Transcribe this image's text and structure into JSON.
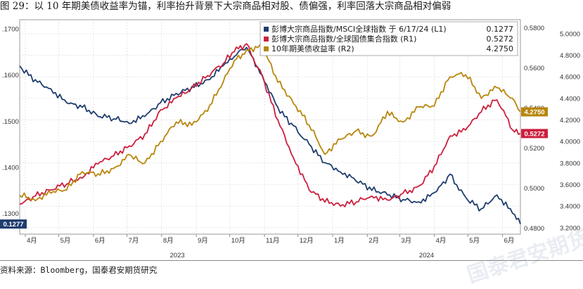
{
  "figure_title": "图 29：以 10 年期美债收益率为锚，利率抬升背景下大宗商品相对股、债偏强，利率回落大宗商品相对偏弱",
  "source_note": "资料来源：Bloomberg，国泰君安期货研究",
  "watermark_text": "国泰君安期货",
  "chart_data": {
    "type": "line",
    "x_start": "2023-03-27",
    "x_end": "2024-06-17",
    "month_ticks": [
      {
        "date": "2023-04-01",
        "label": "4月"
      },
      {
        "date": "2023-05-01",
        "label": "5月"
      },
      {
        "date": "2023-06-01",
        "label": "6月"
      },
      {
        "date": "2023-07-01",
        "label": "7月"
      },
      {
        "date": "2023-08-01",
        "label": "8月"
      },
      {
        "date": "2023-09-01",
        "label": "9月"
      },
      {
        "date": "2023-10-01",
        "label": "10月"
      },
      {
        "date": "2023-11-01",
        "label": "11月"
      },
      {
        "date": "2023-12-01",
        "label": "12月"
      },
      {
        "date": "2024-01-01",
        "label": "1月"
      },
      {
        "date": "2024-02-01",
        "label": "2月"
      },
      {
        "date": "2024-03-01",
        "label": "3月"
      },
      {
        "date": "2024-04-01",
        "label": "4月"
      },
      {
        "date": "2024-05-01",
        "label": "5月"
      },
      {
        "date": "2024-06-01",
        "label": "6月"
      }
    ],
    "year_labels": [
      {
        "date": "2023-08-15",
        "label": "2023"
      },
      {
        "date": "2024-03-25",
        "label": "2024"
      }
    ],
    "axes": {
      "l1": {
        "min": 0.1255,
        "max": 0.172,
        "ticks": [
          0.13,
          0.14,
          0.15,
          0.16,
          0.17
        ],
        "tick_labels": [
          ".1300",
          ".1400",
          ".1500",
          ".1600",
          ".1700"
        ]
      },
      "r1": {
        "min": 0.477,
        "max": 0.584,
        "ticks": [
          0.48,
          0.5,
          0.52,
          0.54,
          0.56,
          0.58
        ],
        "tick_labels": [
          "0.4800",
          "0.5000",
          "0.5200",
          "0.5400",
          "0.5600",
          "0.5800"
        ]
      },
      "r2": {
        "min": 3.14,
        "max": 5.13,
        "ticks": [
          3.2,
          3.4,
          3.6,
          3.8,
          4.0,
          4.2,
          4.4,
          4.6,
          4.8,
          5.0
        ],
        "tick_labels": [
          "3.2000",
          "3.4000",
          "3.6000",
          "3.8000",
          "4.0000",
          "4.2000",
          "4.4000",
          "4.6000",
          "4.8000",
          "5.0000"
        ]
      }
    },
    "grid": true,
    "legend_position": "top-right",
    "series": [
      {
        "name": "彭博大宗商品指数/MSCI全球指数 于 6/17/24 (L1)",
        "last_value_label": "0.1277",
        "axis": "l1",
        "color": "#1f3d6e",
        "end_tag": "0.1277",
        "points": [
          [
            "2023-03-27",
            0.162
          ],
          [
            "2023-04-10",
            0.159
          ],
          [
            "2023-04-24",
            0.157
          ],
          [
            "2023-05-08",
            0.154
          ],
          [
            "2023-05-22",
            0.153
          ],
          [
            "2023-06-05",
            0.151
          ],
          [
            "2023-06-19",
            0.1505
          ],
          [
            "2023-07-03",
            0.1495
          ],
          [
            "2023-07-17",
            0.151
          ],
          [
            "2023-07-31",
            0.154
          ],
          [
            "2023-08-14",
            0.156
          ],
          [
            "2023-08-28",
            0.1575
          ],
          [
            "2023-09-11",
            0.159
          ],
          [
            "2023-09-25",
            0.162
          ],
          [
            "2023-10-05",
            0.164
          ],
          [
            "2023-10-16",
            0.166
          ],
          [
            "2023-10-30",
            0.16
          ],
          [
            "2023-11-13",
            0.153
          ],
          [
            "2023-11-27",
            0.149
          ],
          [
            "2023-12-11",
            0.145
          ],
          [
            "2023-12-25",
            0.141
          ],
          [
            "2024-01-08",
            0.139
          ],
          [
            "2024-01-22",
            0.137
          ],
          [
            "2024-02-05",
            0.135
          ],
          [
            "2024-02-19",
            0.134
          ],
          [
            "2024-03-04",
            0.133
          ],
          [
            "2024-03-18",
            0.1325
          ],
          [
            "2024-04-01",
            0.1345
          ],
          [
            "2024-04-15",
            0.1385
          ],
          [
            "2024-04-29",
            0.1335
          ],
          [
            "2024-05-13",
            0.131
          ],
          [
            "2024-05-27",
            0.134
          ],
          [
            "2024-06-10",
            0.13
          ],
          [
            "2024-06-17",
            0.1277
          ]
        ]
      },
      {
        "name": "彭博大宗商品指数/全球国债集合指数 (R1)",
        "last_value_label": "0.5272",
        "axis": "r1",
        "color": "#cc1f3d",
        "end_tag": "0.5272",
        "points": [
          [
            "2023-03-27",
            0.492
          ],
          [
            "2023-04-10",
            0.496
          ],
          [
            "2023-04-24",
            0.499
          ],
          [
            "2023-05-08",
            0.502
          ],
          [
            "2023-05-22",
            0.505
          ],
          [
            "2023-06-05",
            0.512
          ],
          [
            "2023-06-19",
            0.516
          ],
          [
            "2023-07-03",
            0.521
          ],
          [
            "2023-07-17",
            0.527
          ],
          [
            "2023-07-31",
            0.539
          ],
          [
            "2023-08-14",
            0.545
          ],
          [
            "2023-08-28",
            0.55
          ],
          [
            "2023-09-11",
            0.556
          ],
          [
            "2023-09-25",
            0.562
          ],
          [
            "2023-10-05",
            0.568
          ],
          [
            "2023-10-16",
            0.572
          ],
          [
            "2023-10-30",
            0.556
          ],
          [
            "2023-11-13",
            0.534
          ],
          [
            "2023-11-27",
            0.515
          ],
          [
            "2023-12-11",
            0.499
          ],
          [
            "2023-12-25",
            0.493
          ],
          [
            "2024-01-08",
            0.491
          ],
          [
            "2024-01-22",
            0.493
          ],
          [
            "2024-02-05",
            0.496
          ],
          [
            "2024-02-19",
            0.494
          ],
          [
            "2024-03-04",
            0.4975
          ],
          [
            "2024-03-18",
            0.501
          ],
          [
            "2024-04-01",
            0.511
          ],
          [
            "2024-04-15",
            0.526
          ],
          [
            "2024-04-29",
            0.529
          ],
          [
            "2024-05-13",
            0.538
          ],
          [
            "2024-05-27",
            0.544
          ],
          [
            "2024-06-10",
            0.529
          ],
          [
            "2024-06-17",
            0.5272
          ]
        ]
      },
      {
        "name": "10年期美债收益率 (R2)",
        "last_value_label": "4.2750",
        "axis": "r2",
        "color": "#b8860b",
        "end_tag": "4.2750",
        "points": [
          [
            "2023-03-27",
            3.5
          ],
          [
            "2023-04-10",
            3.45
          ],
          [
            "2023-04-24",
            3.52
          ],
          [
            "2023-05-08",
            3.55
          ],
          [
            "2023-05-22",
            3.72
          ],
          [
            "2023-06-05",
            3.7
          ],
          [
            "2023-06-19",
            3.75
          ],
          [
            "2023-07-03",
            3.88
          ],
          [
            "2023-07-17",
            3.8
          ],
          [
            "2023-07-31",
            4.0
          ],
          [
            "2023-08-14",
            4.18
          ],
          [
            "2023-08-28",
            4.15
          ],
          [
            "2023-09-11",
            4.28
          ],
          [
            "2023-09-25",
            4.55
          ],
          [
            "2023-10-05",
            4.75
          ],
          [
            "2023-10-16",
            4.85
          ],
          [
            "2023-10-30",
            4.88
          ],
          [
            "2023-11-13",
            4.55
          ],
          [
            "2023-11-27",
            4.35
          ],
          [
            "2023-12-11",
            4.15
          ],
          [
            "2023-12-25",
            3.88
          ],
          [
            "2024-01-08",
            4.02
          ],
          [
            "2024-01-22",
            4.1
          ],
          [
            "2024-02-05",
            4.05
          ],
          [
            "2024-02-19",
            4.28
          ],
          [
            "2024-03-04",
            4.18
          ],
          [
            "2024-03-18",
            4.32
          ],
          [
            "2024-04-01",
            4.33
          ],
          [
            "2024-04-15",
            4.6
          ],
          [
            "2024-04-29",
            4.62
          ],
          [
            "2024-05-13",
            4.4
          ],
          [
            "2024-05-27",
            4.5
          ],
          [
            "2024-06-10",
            4.4
          ],
          [
            "2024-06-17",
            4.275
          ]
        ]
      }
    ]
  }
}
